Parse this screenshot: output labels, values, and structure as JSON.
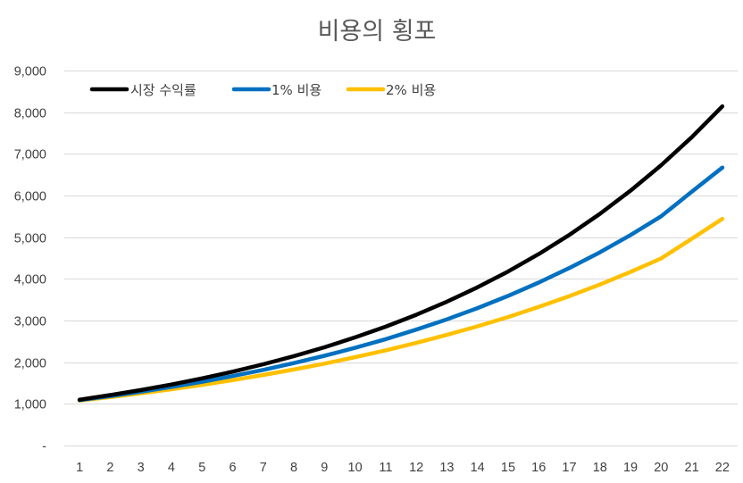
{
  "chart_data": {
    "type": "line",
    "title": "비용의 횡포",
    "xlabel": "",
    "ylabel": "",
    "categories": [
      "1",
      "2",
      "3",
      "4",
      "5",
      "6",
      "7",
      "8",
      "9",
      "10",
      "11",
      "12",
      "13",
      "14",
      "15",
      "16",
      "17",
      "18",
      "19",
      "20",
      "21",
      "22"
    ],
    "ylim": [
      0,
      9000
    ],
    "yticks": [
      0,
      1000,
      2000,
      3000,
      4000,
      5000,
      6000,
      7000,
      8000,
      9000
    ],
    "ytick_labels": [
      "-",
      "1,000",
      "2,000",
      "3,000",
      "4,000",
      "5,000",
      "6,000",
      "7,000",
      "8,000",
      "9,000"
    ],
    "grid": true,
    "legend_position": "top-left",
    "series": [
      {
        "name": "시장 수익률",
        "color": "#000000",
        "values": [
          1100,
          1210,
          1331,
          1464,
          1611,
          1772,
          1949,
          2144,
          2358,
          2594,
          2853,
          3138,
          3452,
          3797,
          4177,
          4595,
          5054,
          5560,
          6116,
          6727,
          7400,
          8140
        ]
      },
      {
        "name": "1% 비용",
        "color": "#0070c0",
        "values": [
          1089,
          1186,
          1291,
          1406,
          1531,
          1667,
          1816,
          1977,
          2153,
          2345,
          2553,
          2781,
          3028,
          3298,
          3591,
          3911,
          4259,
          4638,
          5051,
          5500,
          6090,
          6670
        ]
      },
      {
        "name": "2% 비용",
        "color": "#ffc000",
        "values": [
          1078,
          1162,
          1253,
          1350,
          1456,
          1569,
          1692,
          1824,
          1966,
          2119,
          2284,
          2462,
          2654,
          2861,
          3084,
          3325,
          3584,
          3863,
          4165,
          4489,
          4960,
          5440
        ]
      }
    ]
  }
}
